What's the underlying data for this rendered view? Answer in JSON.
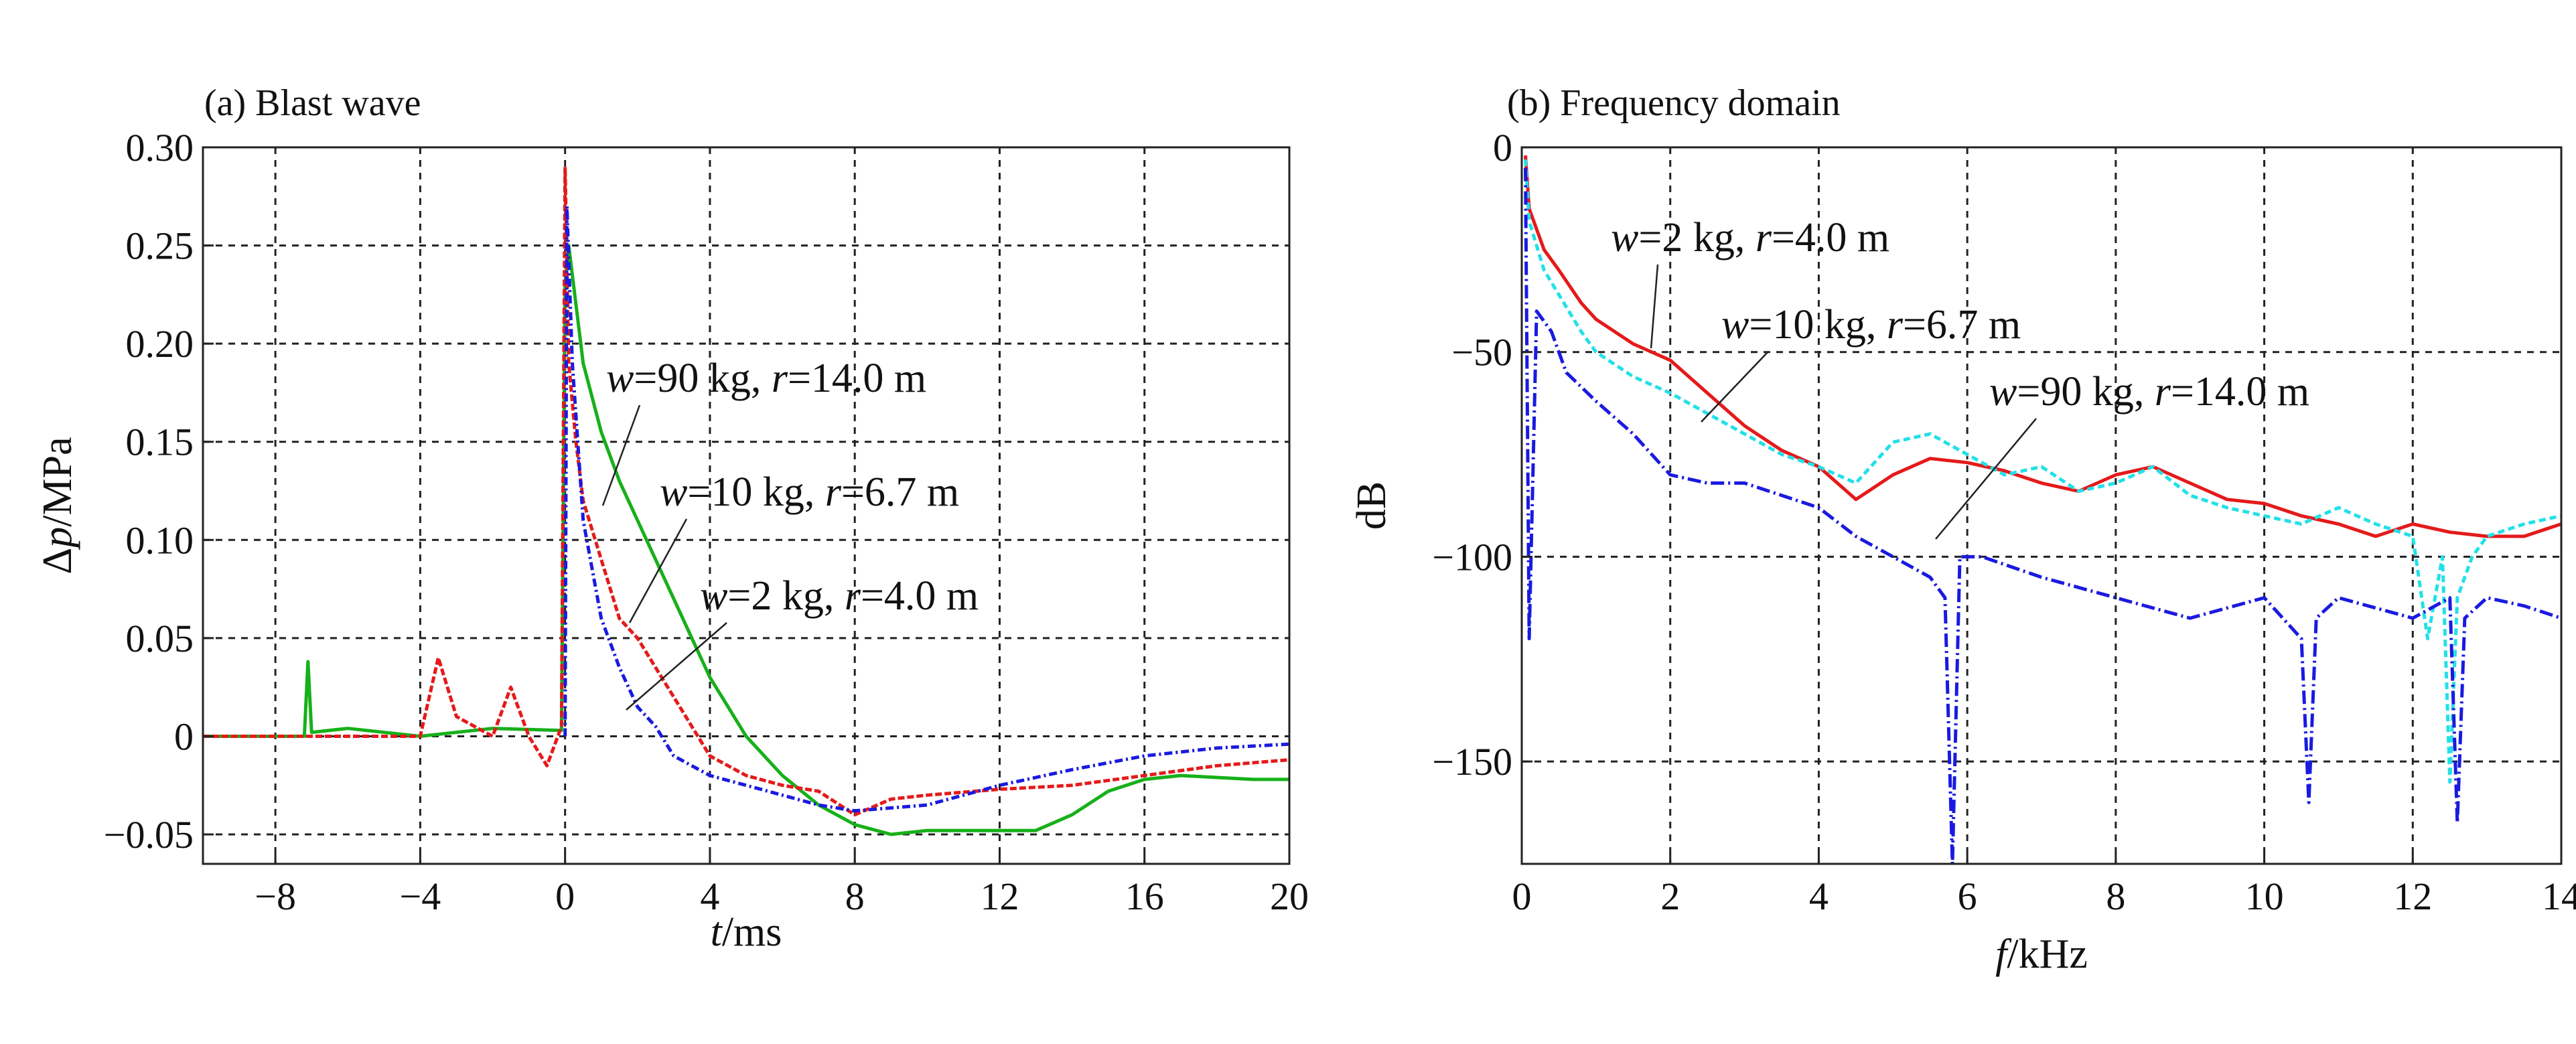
{
  "chart_data": [
    {
      "type": "line",
      "title": "(a) Blast wave",
      "xlabel_var": "t",
      "xlabel_unit": "/ms",
      "ylabel_var": "p",
      "ylabel_prefix": "Δ",
      "ylabel_unit": "/MPa",
      "xlim": [
        -10,
        20
      ],
      "ylim": [
        -0.065,
        0.3
      ],
      "xticks": [
        -8,
        -4,
        0,
        4,
        8,
        12,
        16,
        20
      ],
      "xtick_labels": [
        "−8",
        "−4",
        "0",
        "4",
        "8",
        "12",
        "16",
        "20"
      ],
      "yticks": [
        -0.05,
        0,
        0.05,
        0.1,
        0.15,
        0.2,
        0.25,
        0.3
      ],
      "ytick_labels": [
        "−0.05",
        "0",
        "0.05",
        "0.10",
        "0.15",
        "0.20",
        "0.25",
        "0.30"
      ],
      "grid": true,
      "series": [
        {
          "name": "w=90 kg, r=14.0 m",
          "color": "#17b01a",
          "dash": "solid",
          "x": [
            -10,
            -7.2,
            -7.1,
            -7.0,
            -6.0,
            -4.0,
            -2.0,
            -0.1,
            0.0,
            0.1,
            0.3,
            0.5,
            1.0,
            1.5,
            2.0,
            2.5,
            3.0,
            3.5,
            4.0,
            5.0,
            6.0,
            7.0,
            8.0,
            9.0,
            10.0,
            11.0,
            12.0,
            13.0,
            14.0,
            15.0,
            16.0,
            17.0,
            18.0,
            19.0,
            20.0
          ],
          "y": [
            0,
            0,
            0.038,
            0.002,
            0.004,
            0.0,
            0.004,
            0.003,
            0.23,
            0.25,
            0.22,
            0.19,
            0.155,
            0.13,
            0.11,
            0.09,
            0.07,
            0.05,
            0.03,
            0.0,
            -0.02,
            -0.035,
            -0.045,
            -0.05,
            -0.048,
            -0.048,
            -0.048,
            -0.048,
            -0.04,
            -0.028,
            -0.022,
            -0.02,
            -0.021,
            -0.022,
            -0.022
          ]
        },
        {
          "name": "w=10 kg, r=6.7 m",
          "color": "#e51a1a",
          "dash": "10 4",
          "x": [
            -10,
            -4.0,
            -3.5,
            -3.0,
            -2.0,
            -1.5,
            -1.0,
            -0.5,
            -0.1,
            0.0,
            0.1,
            0.3,
            0.5,
            1.0,
            1.5,
            2.0,
            2.5,
            3.0,
            3.5,
            4.0,
            5.0,
            6.0,
            7.0,
            8.0,
            9.0,
            10.0,
            12.0,
            14.0,
            16.0,
            18.0,
            20.0
          ],
          "y": [
            0,
            0.0,
            0.04,
            0.01,
            0.0,
            0.025,
            0.0,
            -0.015,
            0.005,
            0.29,
            0.19,
            0.15,
            0.12,
            0.09,
            0.06,
            0.05,
            0.035,
            0.02,
            0.005,
            -0.01,
            -0.02,
            -0.025,
            -0.028,
            -0.04,
            -0.032,
            -0.03,
            -0.027,
            -0.025,
            -0.02,
            -0.015,
            -0.012
          ]
        },
        {
          "name": "w=2 kg, r=4.0 m",
          "color": "#1a1ae0",
          "dash": "12 5 3 5",
          "x": [
            0.0,
            0.05,
            0.2,
            0.5,
            1.0,
            1.5,
            2.0,
            2.5,
            3.0,
            4.0,
            5.0,
            6.0,
            7.0,
            8.0,
            10.0,
            12.0,
            14.0,
            16.0,
            18.0,
            20.0
          ],
          "y": [
            0.0,
            0.27,
            0.19,
            0.11,
            0.06,
            0.035,
            0.015,
            0.005,
            -0.01,
            -0.02,
            -0.025,
            -0.03,
            -0.035,
            -0.038,
            -0.035,
            -0.025,
            -0.017,
            -0.01,
            -0.006,
            -0.004
          ]
        }
      ],
      "annotations": [
        {
          "var1": "w",
          "val1": "=90 kg, ",
          "var2": "r",
          "val2": "=14.0 m"
        },
        {
          "var1": "w",
          "val1": "=10 kg, ",
          "var2": "r",
          "val2": "=6.7 m"
        },
        {
          "var1": "w",
          "val1": "=2 kg, ",
          "var2": "r",
          "val2": "=4.0 m"
        }
      ]
    },
    {
      "type": "line",
      "title": "(b) Frequency domain",
      "xlabel_var": "f",
      "xlabel_unit": "/kHz",
      "ylabel": "dB",
      "xlim": [
        0,
        14
      ],
      "ylim": [
        -175,
        0
      ],
      "xticks": [
        0,
        2,
        4,
        6,
        8,
        10,
        12,
        14
      ],
      "xtick_labels": [
        "0",
        "2",
        "4",
        "6",
        "8",
        "10",
        "12",
        "14"
      ],
      "yticks": [
        0,
        -50,
        -100,
        -150
      ],
      "ytick_labels": [
        "0",
        "−50",
        "−100",
        "−150"
      ],
      "grid": true,
      "series": [
        {
          "name": "w=2 kg, r=4.0 m",
          "color": "#e51a1a",
          "dash": "solid",
          "x": [
            0.05,
            0.1,
            0.3,
            0.5,
            0.8,
            1.0,
            1.5,
            2.0,
            2.5,
            3.0,
            3.5,
            4.0,
            4.5,
            5.0,
            5.5,
            6.0,
            6.5,
            7.0,
            7.5,
            8.0,
            8.5,
            9.0,
            9.5,
            10.0,
            10.5,
            11.0,
            11.5,
            12.0,
            12.5,
            13.0,
            13.5,
            14.0
          ],
          "y": [
            -2,
            -15,
            -25,
            -30,
            -38,
            -42,
            -48,
            -52,
            -60,
            -68,
            -74,
            -78,
            -86,
            -80,
            -76,
            -77,
            -79,
            -82,
            -84,
            -80,
            -78,
            -82,
            -86,
            -87,
            -90,
            -92,
            -95,
            -92,
            -94,
            -95,
            -95,
            -92
          ]
        },
        {
          "name": "w=10 kg, r=6.7 m",
          "color": "#22e0e8",
          "dash": "10 6",
          "x": [
            0.05,
            0.1,
            0.3,
            0.5,
            0.8,
            1.0,
            1.5,
            2.0,
            2.5,
            3.0,
            3.5,
            4.0,
            4.5,
            5.0,
            5.5,
            6.0,
            6.5,
            7.0,
            7.5,
            8.0,
            8.5,
            9.0,
            9.5,
            10.0,
            10.5,
            11.0,
            11.5,
            12.0,
            12.2,
            12.4,
            12.5,
            12.6,
            12.8,
            13.0,
            13.5,
            14.0
          ],
          "y": [
            -3,
            -18,
            -30,
            -36,
            -45,
            -50,
            -56,
            -60,
            -65,
            -70,
            -75,
            -78,
            -82,
            -72,
            -70,
            -75,
            -80,
            -78,
            -84,
            -82,
            -78,
            -85,
            -88,
            -90,
            -92,
            -88,
            -92,
            -95,
            -120,
            -100,
            -155,
            -110,
            -100,
            -95,
            -92,
            -90
          ]
        },
        {
          "name": "w=90 kg, r=14.0 m",
          "color": "#1a1ae0",
          "dash": "20 6 3 6",
          "x": [
            0.05,
            0.1,
            0.2,
            0.4,
            0.6,
            1.0,
            1.5,
            2.0,
            2.5,
            3.0,
            3.5,
            4.0,
            4.5,
            5.0,
            5.5,
            5.7,
            5.8,
            5.9,
            6.2,
            7.0,
            8.0,
            9.0,
            10.0,
            10.5,
            10.6,
            10.7,
            11.0,
            12.0,
            12.5,
            12.6,
            12.7,
            13.0,
            13.5,
            14.0
          ],
          "y": [
            -5,
            -120,
            -40,
            -45,
            -55,
            -62,
            -70,
            -80,
            -82,
            -82,
            -85,
            -88,
            -95,
            -100,
            -105,
            -110,
            -175,
            -100,
            -100,
            -105,
            -110,
            -115,
            -110,
            -120,
            -160,
            -115,
            -110,
            -115,
            -110,
            -165,
            -115,
            -110,
            -112,
            -115
          ]
        }
      ],
      "annotations": [
        {
          "var1": "w",
          "val1": "=2 kg, ",
          "var2": "r",
          "val2": "=4.0 m"
        },
        {
          "var1": "w",
          "val1": "=10 kg, ",
          "var2": "r",
          "val2": "=6.7 m"
        },
        {
          "var1": "w",
          "val1": "=90 kg, ",
          "var2": "r",
          "val2": "=14.0 m"
        }
      ]
    }
  ]
}
